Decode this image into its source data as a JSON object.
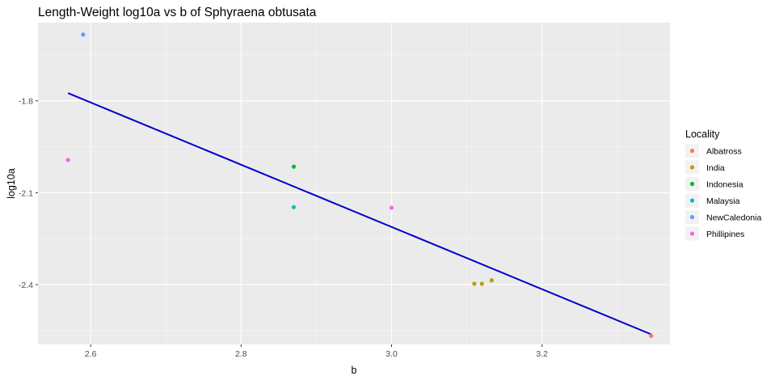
{
  "chart_data": {
    "type": "scatter",
    "title": "Length-Weight log10a vs b of Sphyraena obtusata",
    "xlabel": "b",
    "ylabel": "log10a",
    "xlim": [
      2.53,
      3.37
    ],
    "ylim": [
      -2.595,
      -1.545
    ],
    "x_ticks": [
      2.6,
      2.8,
      3.0,
      3.2
    ],
    "x_tick_labels": [
      "2.6",
      "2.8",
      "3.0",
      "3.2"
    ],
    "y_ticks": [
      -2.4,
      -2.1,
      -1.8
    ],
    "y_tick_labels": [
      "-2.4",
      "-2.1",
      "-1.8"
    ],
    "grid": true,
    "legend_title": "Locality",
    "legend_position": "right",
    "series": [
      {
        "name": "Albatross",
        "color": "#F8766D",
        "points": [
          [
            3.345,
            -2.567
          ]
        ]
      },
      {
        "name": "India",
        "color": "#B79F00",
        "points": [
          [
            3.11,
            -2.397
          ],
          [
            3.12,
            -2.397
          ],
          [
            3.133,
            -2.386
          ]
        ]
      },
      {
        "name": "Indonesia",
        "color": "#00BA38",
        "points": [
          [
            2.87,
            -2.015
          ]
        ]
      },
      {
        "name": "Malaysia",
        "color": "#00BFC4",
        "points": [
          [
            2.87,
            -2.147
          ]
        ]
      },
      {
        "name": "NewCaledonia",
        "color": "#619CFF",
        "points": [
          [
            2.59,
            -1.584
          ]
        ]
      },
      {
        "name": "Phillipines",
        "color": "#F564E3",
        "points": [
          [
            2.57,
            -1.993
          ],
          [
            3.0,
            -2.149
          ]
        ]
      }
    ],
    "fit_line": {
      "color": "#0000CD",
      "x": [
        2.57,
        3.345
      ],
      "y": [
        -1.775,
        -2.562
      ]
    }
  }
}
